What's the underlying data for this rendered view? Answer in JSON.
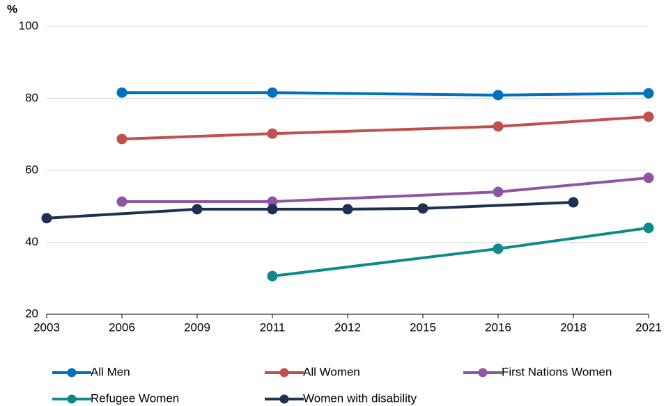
{
  "chart_data": {
    "type": "line",
    "y_label": "%",
    "categories": [
      "2003",
      "2006",
      "2009",
      "2011",
      "2012",
      "2015",
      "2016",
      "2018",
      "2021"
    ],
    "series": [
      {
        "name": "All Men",
        "color": "#0070c0",
        "values": [
          null,
          81.6,
          null,
          81.6,
          null,
          null,
          80.9,
          null,
          81.4
        ]
      },
      {
        "name": "All Women",
        "color": "#c0504d",
        "values": [
          null,
          68.7,
          null,
          70.2,
          null,
          null,
          72.2,
          null,
          74.9
        ]
      },
      {
        "name": "First Nations Women",
        "color": "#8e55a2",
        "values": [
          null,
          51.3,
          null,
          51.3,
          null,
          null,
          54.0,
          null,
          57.9
        ]
      },
      {
        "name": "Refugee Women",
        "color": "#0e8a8c",
        "values": [
          null,
          null,
          null,
          30.6,
          null,
          null,
          38.2,
          null,
          44.0
        ]
      },
      {
        "name": "Women with disability",
        "color": "#1f3152",
        "values": [
          46.7,
          null,
          49.2,
          49.2,
          49.2,
          49.4,
          null,
          51.1,
          null
        ]
      }
    ],
    "ylim": [
      20,
      100
    ],
    "yticks": [
      20,
      40,
      60,
      80,
      100
    ],
    "grid": true
  }
}
